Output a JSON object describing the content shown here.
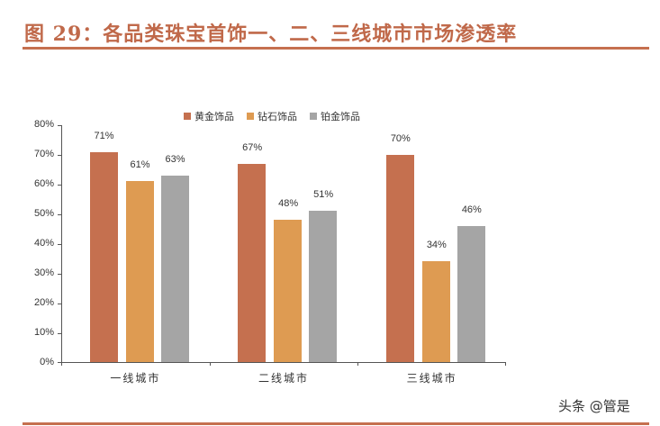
{
  "title": "图 29：各品类珠宝首饰一、二、三线城市市场渗透率",
  "watermark": "头条 @管是",
  "colors": {
    "accent": "#C5704F",
    "title": "#C0694A"
  },
  "chart_data": {
    "type": "bar",
    "title": "图 29：各品类珠宝首饰一、二、三线城市市场渗透率",
    "xlabel": "",
    "ylabel": "",
    "ylim": [
      0,
      80
    ],
    "yticks": [
      "0%",
      "10%",
      "20%",
      "30%",
      "40%",
      "50%",
      "60%",
      "70%",
      "80%"
    ],
    "categories": [
      "一线城市",
      "二线城市",
      "三线城市"
    ],
    "series": [
      {
        "name": "黄金饰品",
        "color": "#C5704F",
        "values": [
          71,
          67,
          70
        ],
        "labels": [
          "71%",
          "67%",
          "70%"
        ]
      },
      {
        "name": "钻石饰品",
        "color": "#DE9B52",
        "values": [
          61,
          48,
          34
        ],
        "labels": [
          "61%",
          "48%",
          "34%"
        ]
      },
      {
        "name": "铂金饰品",
        "color": "#A5A5A5",
        "values": [
          63,
          51,
          46
        ],
        "labels": [
          "63%",
          "51%",
          "46%"
        ]
      }
    ],
    "legend_position": "top",
    "grid": false
  }
}
